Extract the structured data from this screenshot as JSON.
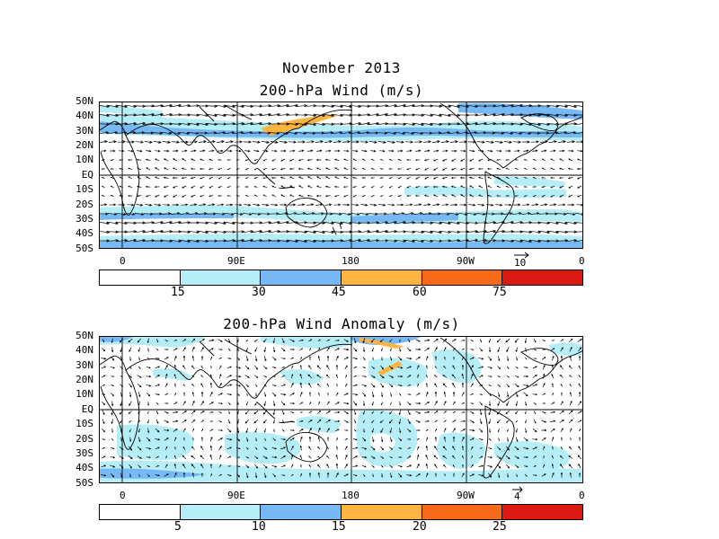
{
  "figure": {
    "main_title": "November 2013",
    "colors": {
      "c0": "#ffffff",
      "c1": "#b5eef6",
      "c2": "#77b9f4",
      "c3": "#fdb440",
      "c4": "#f96a18",
      "c5": "#dc1a14"
    }
  },
  "panel_top": {
    "title": "200-hPa Wind (m/s)",
    "lat_labels": [
      "50N",
      "40N",
      "30N",
      "20N",
      "10N",
      "EQ",
      "10S",
      "20S",
      "30S",
      "40S",
      "50S"
    ],
    "lon_labels": [
      "0",
      "90E",
      "180",
      "90W",
      "0"
    ],
    "ref_vector": "10",
    "colorbar_labels": [
      "15",
      "30",
      "45",
      "60",
      "75"
    ]
  },
  "panel_bottom": {
    "title": "200-hPa Wind Anomaly (m/s)",
    "lat_labels": [
      "50N",
      "40N",
      "30N",
      "20N",
      "10N",
      "EQ",
      "10S",
      "20S",
      "30S",
      "40S",
      "50S"
    ],
    "lon_labels": [
      "0",
      "90E",
      "180",
      "90W",
      "0"
    ],
    "ref_vector": "4",
    "colorbar_labels": [
      "5",
      "10",
      "15",
      "20",
      "25"
    ]
  }
}
